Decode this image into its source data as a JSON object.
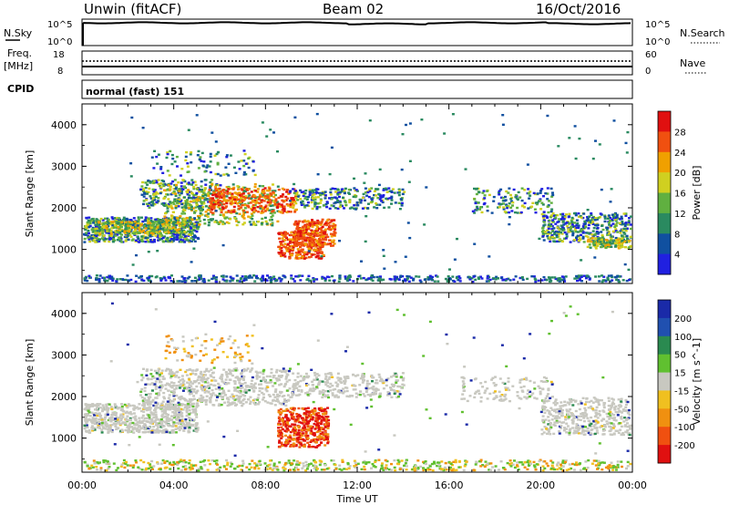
{
  "header": {
    "station": "Unwin  (fitACF)",
    "beam": "Beam 02",
    "date": "16/Oct/2016"
  },
  "top_panels": {
    "nsky": {
      "label": "N.Sky",
      "tick_hi": "10^5",
      "tick_lo": "10^0",
      "right_tick_hi": "10^5",
      "right_tick_lo": "10^0",
      "right_label": "N.Search"
    },
    "freq": {
      "label_1": "Freq.",
      "label_2": "[MHz]",
      "tick_hi": "18",
      "tick_lo": "8",
      "right_tick_hi": "60",
      "right_tick_lo": "0",
      "right_label": "Nave"
    },
    "cpid": {
      "label": "CPID",
      "value": "normal (fast) 151"
    }
  },
  "chart_data": [
    {
      "type": "heatmap",
      "name_panel": "power",
      "ylabel": "Slant Range [km]",
      "yticks": [
        "4000",
        "3000",
        "2000",
        "1000"
      ],
      "colorbar": {
        "label": "Power [dB]",
        "ticks": [
          "28",
          "24",
          "20",
          "16",
          "12",
          "8",
          "4"
        ],
        "colors": [
          "#e01010",
          "#f05010",
          "#f0a000",
          "#d0d020",
          "#60b040",
          "#2a8a60",
          "#1050a0",
          "#2020e0"
        ]
      },
      "ylim": [
        180,
        4500
      ],
      "xlim_hours": [
        0,
        24
      ]
    },
    {
      "type": "heatmap",
      "name_panel": "velocity",
      "ylabel": "Slant Range [km]",
      "yticks": [
        "4000",
        "3000",
        "2000",
        "1000"
      ],
      "colorbar": {
        "label": "Velocity [m s^-1]",
        "ticks": [
          "200",
          "100",
          "50",
          "15",
          "-15",
          "-50",
          "-100",
          "-200"
        ],
        "colors": [
          "#1a2aa8",
          "#2050b0",
          "#2a8a50",
          "#60c030",
          "#c8c8c0",
          "#f0c020",
          "#f09010",
          "#f05010",
          "#e01010"
        ]
      },
      "ylim": [
        180,
        4500
      ],
      "xlim_hours": [
        0,
        24
      ]
    }
  ],
  "xaxis": {
    "ticks": [
      "00:00",
      "04:00",
      "08:00",
      "12:00",
      "16:00",
      "20:00",
      "00:00"
    ],
    "label": "Time UT"
  }
}
